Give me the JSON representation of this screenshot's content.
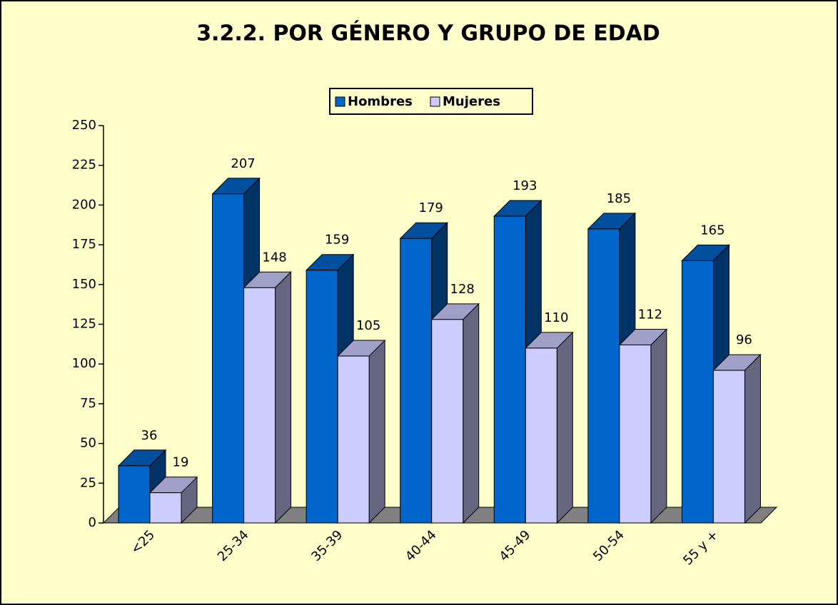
{
  "chart_data": {
    "type": "bar3d",
    "title": "3.2.2. POR GÉNERO Y GRUPO DE EDAD",
    "categories": [
      "<25",
      "25-34",
      "35-39",
      "40-44",
      "45-49",
      "50-54",
      "55 y +"
    ],
    "series": [
      {
        "name": "Hombres",
        "color": "#0066cc",
        "values": [
          36,
          207,
          159,
          179,
          193,
          185,
          165
        ]
      },
      {
        "name": "Mujeres",
        "color": "#ccccff",
        "values": [
          19,
          148,
          105,
          128,
          110,
          112,
          96
        ]
      }
    ],
    "ylim": [
      0,
      250
    ],
    "yticks": [
      0,
      25,
      50,
      75,
      100,
      125,
      150,
      175,
      200,
      225,
      250
    ]
  }
}
